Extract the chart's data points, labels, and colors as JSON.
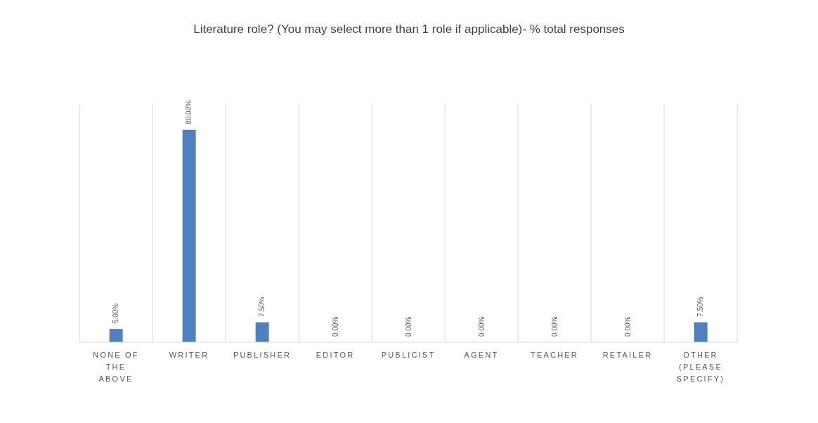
{
  "chart_data": {
    "type": "bar",
    "title": "Literature role? (You may select more than 1 role if applicable)- % total responses",
    "categories": [
      "NONE OF THE ABOVE",
      "WRITER",
      "PUBLISHER",
      "EDITOR",
      "PUBLICIST",
      "AGENT",
      "TEACHER",
      "RETAILER",
      "OTHER (PLEASE SPECIFY)"
    ],
    "values": [
      5,
      80,
      7.5,
      0,
      0,
      0,
      0,
      0,
      7.5
    ],
    "value_labels": [
      "5.00%",
      "80.00%",
      "7.50%",
      "0.00%",
      "0.00%",
      "0.00%",
      "0.00%",
      "0.00%",
      "7.50%"
    ],
    "color": "#4f81bd",
    "ylim": [
      0,
      90
    ],
    "tick_labels": "x",
    "grid": "x"
  }
}
